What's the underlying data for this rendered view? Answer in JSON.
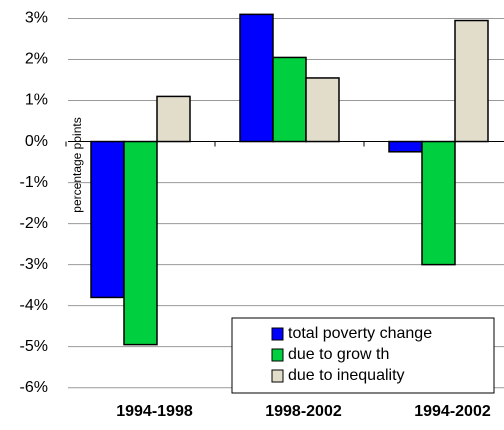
{
  "chart_data": {
    "type": "bar",
    "y_label": "percentage points",
    "categories": [
      "1994-1998",
      "1998-2002",
      "1994-2002"
    ],
    "series": [
      {
        "name": "total poverty change",
        "color": "#0000ff",
        "values": [
          -3.8,
          3.1,
          -0.25
        ]
      },
      {
        "name": "due to grow th",
        "color": "#00d040",
        "values": [
          -4.95,
          2.05,
          -3.0
        ]
      },
      {
        "name": "due to inequality",
        "color": "#e2dccb",
        "values": [
          1.1,
          1.55,
          2.95
        ]
      }
    ],
    "ylim": [
      -6.3,
      3.45
    ],
    "yticks": [
      {
        "value": -6,
        "label": "-6%"
      },
      {
        "value": -5,
        "label": "-5%"
      },
      {
        "value": -4,
        "label": "-4%"
      },
      {
        "value": -3,
        "label": "-3%"
      },
      {
        "value": -2,
        "label": "-2%"
      },
      {
        "value": -1,
        "label": "-1%"
      },
      {
        "value": 0,
        "label": "0%"
      },
      {
        "value": 1,
        "label": "1%"
      },
      {
        "value": 2,
        "label": "2%"
      },
      {
        "value": 3,
        "label": "3%"
      }
    ],
    "grid": true
  }
}
